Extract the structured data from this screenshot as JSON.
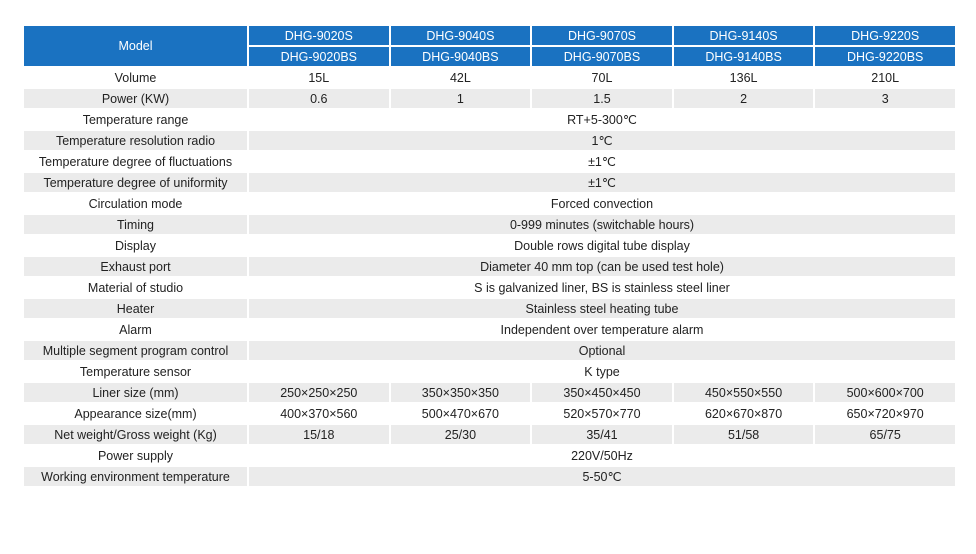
{
  "header": {
    "label": "Model",
    "models_s": [
      "DHG-9020S",
      "DHG-9040S",
      "DHG-9070S",
      "DHG-9140S",
      "DHG-9220S"
    ],
    "models_bs": [
      "DHG-9020BS",
      "DHG-9040BS",
      "DHG-9070BS",
      "DHG-9140BS",
      "DHG-9220BS"
    ]
  },
  "rows": [
    {
      "label": "Volume",
      "values": [
        "15L",
        "42L",
        "70L",
        "136L",
        "210L"
      ]
    },
    {
      "label": "Power (KW)",
      "values": [
        "0.6",
        "1",
        "1.5",
        "2",
        "3"
      ]
    },
    {
      "label": "Temperature range",
      "value": "RT+5-300℃"
    },
    {
      "label": "Temperature resolution radio",
      "value": "1℃"
    },
    {
      "label": "Temperature degree of fluctuations",
      "value": "±1℃"
    },
    {
      "label": "Temperature degree of uniformity",
      "value": "±1℃"
    },
    {
      "label": "Circulation mode",
      "value": "Forced convection"
    },
    {
      "label": "Timing",
      "value": "0-999 minutes (switchable hours)"
    },
    {
      "label": "Display",
      "value": "Double rows digital tube display"
    },
    {
      "label": "Exhaust port",
      "value": "Diameter 40 mm top (can be used test hole)"
    },
    {
      "label": "Material of studio",
      "value": "S is galvanized liner, BS is stainless steel liner"
    },
    {
      "label": "Heater",
      "value": "Stainless steel heating tube"
    },
    {
      "label": "Alarm",
      "value": "Independent over temperature alarm"
    },
    {
      "label": "Multiple segment program control",
      "value": "Optional"
    },
    {
      "label": "Temperature sensor",
      "value": "K type"
    },
    {
      "label": "Liner size (mm)",
      "values": [
        "250×250×250",
        "350×350×350",
        "350×450×450",
        "450×550×550",
        "500×600×700"
      ]
    },
    {
      "label": "Appearance size(mm)",
      "values": [
        "400×370×560",
        "500×470×670",
        "520×570×770",
        "620×670×870",
        "650×720×970"
      ]
    },
    {
      "label": "Net weight/Gross weight (Kg)",
      "values": [
        "15/18",
        "25/30",
        "35/41",
        "51/58",
        "65/75"
      ]
    },
    {
      "label": "Power supply",
      "value": "220V/50Hz"
    },
    {
      "label": "Working environment temperature",
      "value": "5-50℃"
    }
  ]
}
